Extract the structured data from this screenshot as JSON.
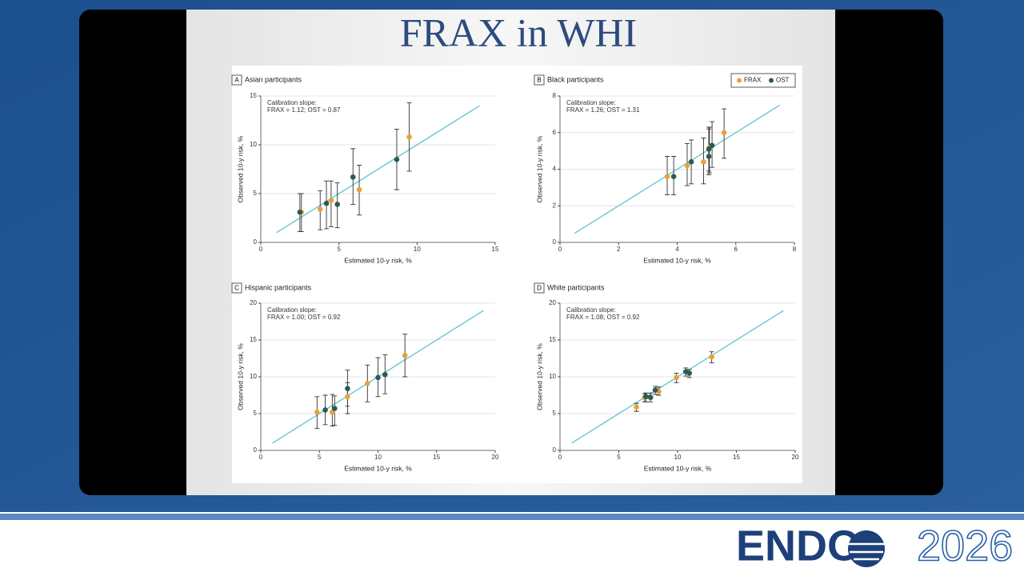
{
  "slide_title": "FRAX in WHI",
  "logo": {
    "bold": "ENDO",
    "light": "2026"
  },
  "chart_data": [
    {
      "type": "scatter",
      "panel": "A",
      "title": "Asian participants",
      "annotations": [
        "Calibration slope:",
        "FRAX = 1.12; OST = 0.87"
      ],
      "x_label": "Estimated 10-y risk, %",
      "y_label": "Observed 10-y risk, %",
      "xlim": [
        0,
        15
      ],
      "xticks": [
        0,
        5,
        10,
        15
      ],
      "ylim": [
        0,
        15
      ],
      "yticks": [
        0,
        5,
        10,
        15
      ],
      "grid": true,
      "identity_line": {
        "x": [
          1,
          14
        ],
        "y": [
          1,
          14
        ]
      },
      "line_color": "#5cc6cf",
      "series": [
        {
          "name": "FRAX",
          "color": "#e8a23a",
          "x": [
            2.6,
            3.8,
            4.5,
            6.3,
            9.5
          ],
          "values": [
            3.1,
            3.4,
            4.3,
            5.4,
            10.8
          ],
          "lower": [
            1.1,
            1.3,
            1.6,
            2.8,
            7.3
          ],
          "upper": [
            5.0,
            5.3,
            6.3,
            7.9,
            14.3
          ]
        },
        {
          "name": "OST",
          "color": "#2e5a55",
          "x": [
            2.5,
            4.2,
            4.9,
            5.9,
            8.7
          ],
          "values": [
            3.1,
            4.0,
            3.9,
            6.7,
            8.5
          ],
          "lower": [
            1.1,
            1.4,
            1.5,
            3.9,
            5.4
          ],
          "upper": [
            5.0,
            6.3,
            6.1,
            9.6,
            11.6
          ]
        }
      ]
    },
    {
      "type": "scatter",
      "panel": "B",
      "title": "Black participants",
      "annotations": [
        "Calibration slope:",
        "FRAX = 1.26; OST = 1.31"
      ],
      "x_label": "Estimated 10-y risk, %",
      "y_label": "Observed 10-y risk, %",
      "xlim": [
        0,
        8
      ],
      "xticks": [
        0,
        2,
        4,
        6,
        8
      ],
      "ylim": [
        0,
        8
      ],
      "yticks": [
        0,
        2,
        4,
        6,
        8
      ],
      "grid": true,
      "legend": "upper right",
      "identity_line": {
        "x": [
          0.5,
          7.5
        ],
        "y": [
          0.5,
          7.5
        ]
      },
      "line_color": "#5cc6cf",
      "series": [
        {
          "name": "FRAX",
          "color": "#e8a23a",
          "x": [
            3.66,
            4.34,
            4.9,
            5.1,
            5.6
          ],
          "values": [
            3.6,
            4.2,
            4.4,
            5.2,
            6.0
          ],
          "lower": [
            2.6,
            3.1,
            3.2,
            3.8,
            4.6
          ],
          "upper": [
            4.7,
            5.4,
            5.7,
            6.3,
            7.3
          ]
        },
        {
          "name": "OST",
          "color": "#2e5a55",
          "x": [
            3.88,
            4.48,
            5.08,
            5.08,
            5.19
          ],
          "values": [
            3.6,
            4.4,
            4.7,
            5.1,
            5.3
          ],
          "lower": [
            2.6,
            3.2,
            3.7,
            3.9,
            4.1
          ],
          "upper": [
            4.7,
            5.6,
            6.2,
            6.3,
            6.6
          ]
        }
      ]
    },
    {
      "type": "scatter",
      "panel": "C",
      "title": "Hispanic participants",
      "annotations": [
        "Calibration slope:",
        "FRAX = 1.00; OST = 0.92"
      ],
      "x_label": "Estimated 10-y risk, %",
      "y_label": "Observed 10-y risk, %",
      "xlim": [
        0,
        20
      ],
      "xticks": [
        0,
        5,
        10,
        15,
        20
      ],
      "ylim": [
        0,
        20
      ],
      "yticks": [
        0,
        5,
        10,
        15,
        20
      ],
      "grid": true,
      "identity_line": {
        "x": [
          1,
          19
        ],
        "y": [
          1,
          19
        ]
      },
      "line_color": "#5cc6cf",
      "series": [
        {
          "name": "FRAX",
          "color": "#e8a23a",
          "x": [
            4.8,
            6.1,
            7.4,
            9.1,
            12.3
          ],
          "values": [
            5.2,
            5.2,
            7.3,
            9.1,
            12.9
          ],
          "lower": [
            3.0,
            3.3,
            5.0,
            6.6,
            10.0
          ],
          "upper": [
            7.3,
            7.6,
            9.2,
            11.6,
            15.8
          ]
        },
        {
          "name": "OST",
          "color": "#2e5a55",
          "x": [
            5.5,
            6.3,
            7.4,
            10.0,
            10.6
          ],
          "values": [
            5.5,
            5.7,
            8.4,
            9.9,
            10.3
          ],
          "lower": [
            3.5,
            3.4,
            6.0,
            7.3,
            7.7
          ],
          "upper": [
            7.5,
            7.4,
            10.9,
            12.6,
            13.0
          ]
        }
      ]
    },
    {
      "type": "scatter",
      "panel": "D",
      "title": "White participants",
      "annotations": [
        "Calibration slope:",
        "FRAX = 1.08; OST = 0.92"
      ],
      "x_label": "Estimated 10-y risk, %",
      "y_label": "Observed 10-y risk, %",
      "xlim": [
        0,
        20
      ],
      "xticks": [
        0,
        5,
        10,
        15,
        20
      ],
      "ylim": [
        0,
        20
      ],
      "yticks": [
        0,
        5,
        10,
        15,
        20
      ],
      "grid": true,
      "identity_line": {
        "x": [
          1,
          19
        ],
        "y": [
          1,
          19
        ]
      },
      "line_color": "#5cc6cf",
      "series": [
        {
          "name": "FRAX",
          "color": "#e8a23a",
          "x": [
            6.5,
            7.2,
            8.4,
            9.9,
            12.9
          ],
          "values": [
            5.9,
            7.2,
            8.0,
            9.9,
            12.7
          ],
          "lower": [
            5.3,
            6.6,
            7.5,
            9.2,
            11.9
          ],
          "upper": [
            6.4,
            7.7,
            8.6,
            10.5,
            13.4
          ]
        },
        {
          "name": "OST",
          "color": "#2e5a55",
          "x": [
            7.3,
            7.7,
            8.1,
            10.7,
            11.0
          ],
          "values": [
            7.3,
            7.2,
            8.2,
            10.7,
            10.5
          ],
          "lower": [
            6.6,
            6.6,
            7.6,
            10.1,
            9.9
          ],
          "upper": [
            7.8,
            7.8,
            8.7,
            11.2,
            11.0
          ]
        }
      ]
    }
  ]
}
